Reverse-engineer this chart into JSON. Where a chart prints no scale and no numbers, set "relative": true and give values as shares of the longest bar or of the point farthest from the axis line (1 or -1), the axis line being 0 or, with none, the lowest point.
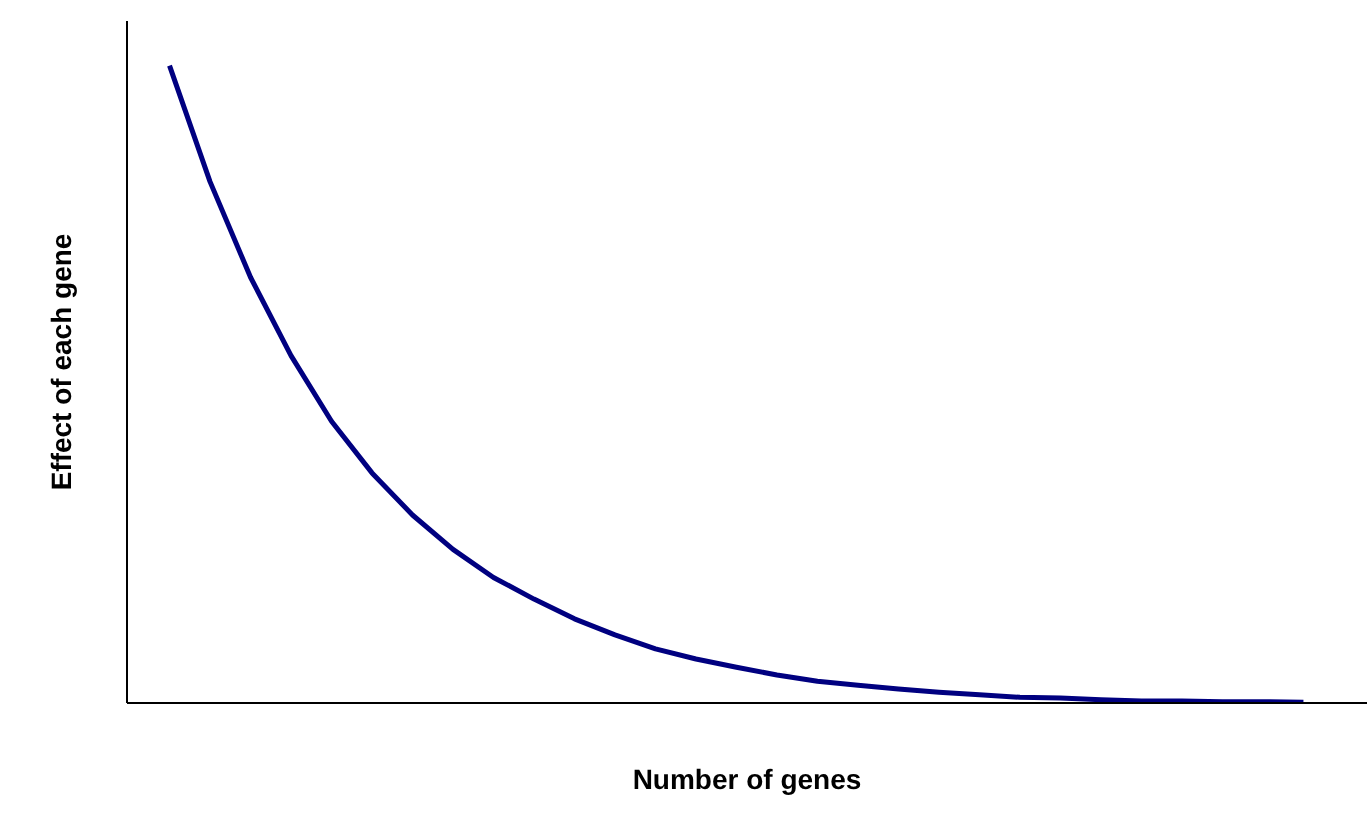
{
  "chart_data": {
    "type": "line",
    "relative": true,
    "xlabel": "Number of genes",
    "ylabel": "Effect of each gene",
    "categories": [
      null,
      null,
      null,
      null,
      null,
      null,
      null,
      null,
      null,
      null,
      null,
      null,
      null,
      null,
      null,
      null,
      null,
      null,
      null,
      null,
      null,
      null,
      null,
      null,
      null,
      null,
      null,
      null,
      null
    ],
    "series": [
      {
        "color": "#000080",
        "values": [
          1.0,
          0.818,
          0.668,
          0.545,
          0.442,
          0.361,
          0.295,
          0.241,
          0.197,
          0.163,
          0.132,
          0.107,
          0.085,
          0.069,
          0.056,
          0.044,
          0.034,
          0.028,
          0.022,
          0.017,
          0.013,
          0.009,
          0.008,
          0.005,
          0.003,
          0.003,
          0.002,
          0.002,
          0.001
        ]
      }
    ],
    "marker": "none",
    "line_style": "solid"
  }
}
